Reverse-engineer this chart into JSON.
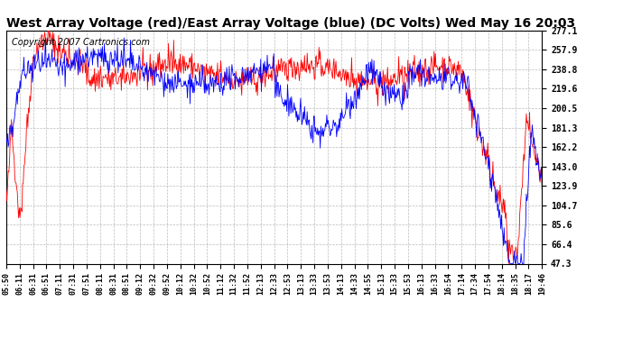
{
  "title": "West Array Voltage (red)/East Array Voltage (blue) (DC Volts) Wed May 16 20:03",
  "copyright": "Copyright 2007 Cartronics.com",
  "title_fontsize": 10,
  "copyright_fontsize": 7,
  "bg_color": "#ffffff",
  "grid_color": "#bbbbbb",
  "red_color": "#ff0000",
  "blue_color": "#0000ff",
  "yticks": [
    47.3,
    66.4,
    85.6,
    104.7,
    123.9,
    143.0,
    162.2,
    181.3,
    200.5,
    219.6,
    238.8,
    257.9,
    277.1
  ],
  "xtick_labels": [
    "05:50",
    "06:11",
    "06:31",
    "06:51",
    "07:11",
    "07:31",
    "07:51",
    "08:11",
    "08:31",
    "08:51",
    "09:12",
    "09:32",
    "09:52",
    "10:12",
    "10:32",
    "10:52",
    "11:12",
    "11:32",
    "11:52",
    "12:13",
    "12:33",
    "12:53",
    "13:13",
    "13:33",
    "13:53",
    "14:13",
    "14:33",
    "14:55",
    "15:13",
    "15:33",
    "15:53",
    "16:13",
    "16:33",
    "16:54",
    "17:14",
    "17:34",
    "17:54",
    "18:14",
    "18:35",
    "18:17",
    "19:46"
  ],
  "ylim": [
    47.3,
    277.1
  ]
}
